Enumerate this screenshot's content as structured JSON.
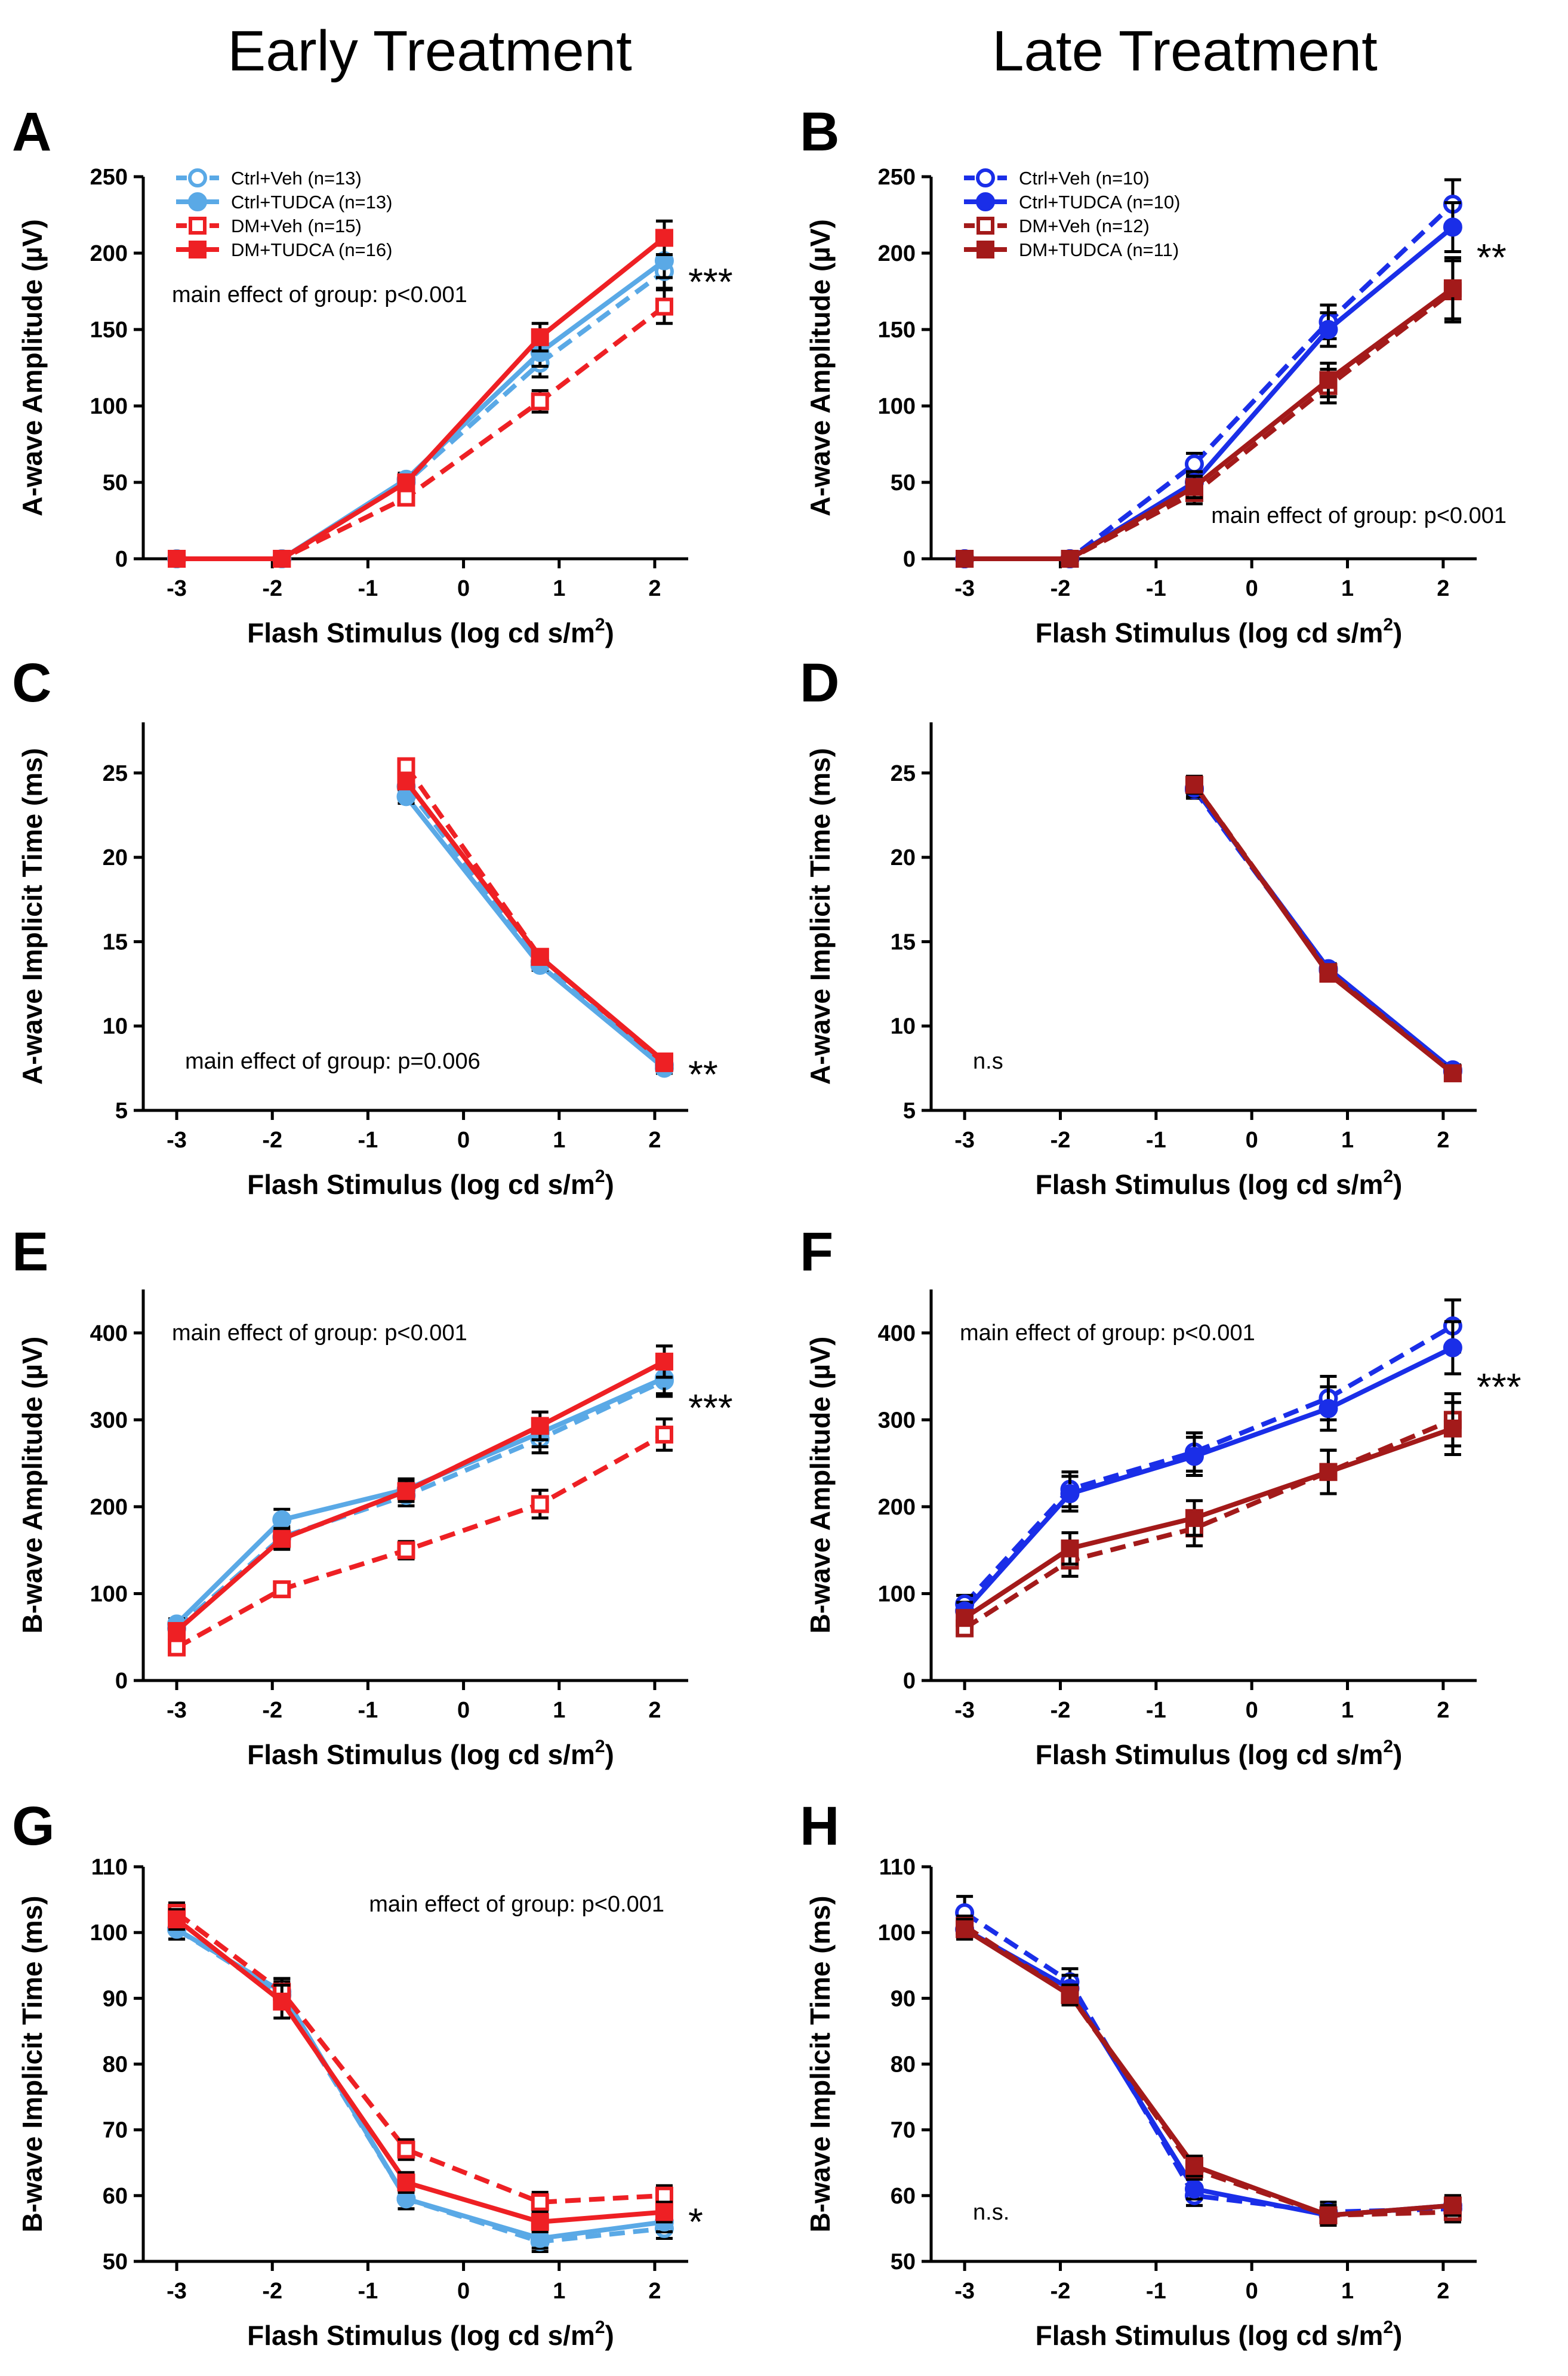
{
  "column_titles": [
    "Early Treatment",
    "Late Treatment"
  ],
  "colors": {
    "ctrl_early": "#5aa9e6",
    "dm_early": "#ee2024",
    "ctrl_late": "#1a2ee8",
    "dm_late": "#a31a1a"
  },
  "chart_data": [
    {
      "panel": "A",
      "type": "line",
      "column": "Early Treatment",
      "xlabel": "Flash Stimulus (log cd s/m2)",
      "ylabel": "A-wave Amplitude (µV)",
      "xlim": [
        -3.35,
        2.35
      ],
      "ylim": [
        0,
        250
      ],
      "xticks": [
        -3,
        -2,
        -1,
        0,
        1,
        2
      ],
      "yticks": [
        0,
        50,
        100,
        150,
        200,
        250
      ],
      "annotation": "main effect of group: p<0.001",
      "annotation_pos": "upper-left",
      "significance": "***",
      "legend_position": "top-left",
      "x": [
        -3,
        -1.9,
        -0.6,
        0.8,
        2.1
      ],
      "series": [
        {
          "name": "Ctrl+Veh (n=13)",
          "color": "#5aa9e6",
          "marker": "circle-open",
          "dash": true,
          "values": [
            0,
            0,
            50,
            128,
            188
          ],
          "errors": [
            0,
            0,
            4,
            9,
            11
          ]
        },
        {
          "name": "Ctrl+TUDCA (n=13)",
          "color": "#5aa9e6",
          "marker": "circle",
          "dash": false,
          "values": [
            0,
            0,
            52,
            135,
            195
          ],
          "errors": [
            0,
            0,
            4,
            9,
            11
          ]
        },
        {
          "name": "DM+Veh (n=15)",
          "color": "#ee2024",
          "marker": "square-open",
          "dash": true,
          "values": [
            0,
            0,
            40,
            103,
            165
          ],
          "errors": [
            0,
            0,
            4,
            7,
            11
          ]
        },
        {
          "name": "DM+TUDCA (n=16)",
          "color": "#ee2024",
          "marker": "square",
          "dash": false,
          "values": [
            0,
            0,
            50,
            145,
            210
          ],
          "errors": [
            0,
            0,
            4,
            9,
            11
          ]
        }
      ]
    },
    {
      "panel": "B",
      "type": "line",
      "column": "Late Treatment",
      "xlabel": "Flash Stimulus (log cd s/m2)",
      "ylabel": "A-wave Amplitude (µV)",
      "xlim": [
        -3.35,
        2.35
      ],
      "ylim": [
        0,
        250
      ],
      "xticks": [
        -3,
        -2,
        -1,
        0,
        1,
        2
      ],
      "yticks": [
        0,
        50,
        100,
        150,
        200,
        250
      ],
      "annotation": "main effect of group: p<0.001",
      "annotation_pos": "lower-right",
      "significance": "**",
      "legend_position": "top-left",
      "x": [
        -3,
        -1.9,
        -0.6,
        0.8,
        2.1
      ],
      "series": [
        {
          "name": "Ctrl+Veh (n=10)",
          "color": "#1a2ee8",
          "marker": "circle-open",
          "dash": true,
          "values": [
            0,
            0,
            62,
            155,
            232
          ],
          "errors": [
            0,
            0,
            7,
            11,
            16
          ]
        },
        {
          "name": "Ctrl+TUDCA (n=10)",
          "color": "#1a2ee8",
          "marker": "circle",
          "dash": false,
          "values": [
            0,
            0,
            50,
            150,
            217
          ],
          "errors": [
            0,
            0,
            7,
            11,
            16
          ]
        },
        {
          "name": "DM+Veh (n=12)",
          "color": "#a31a1a",
          "marker": "square-open",
          "dash": true,
          "values": [
            0,
            0,
            43,
            113,
            175
          ],
          "errors": [
            0,
            0,
            7,
            11,
            20
          ]
        },
        {
          "name": "DM+TUDCA (n=11)",
          "color": "#a31a1a",
          "marker": "square",
          "dash": false,
          "values": [
            0,
            0,
            47,
            117,
            177
          ],
          "errors": [
            0,
            0,
            7,
            11,
            20
          ]
        }
      ]
    },
    {
      "panel": "C",
      "type": "line",
      "column": "Early Treatment",
      "xlabel": "Flash Stimulus (log cd s/m2)",
      "ylabel": "A-wave Implicit Time (ms)",
      "xlim": [
        -3.35,
        2.35
      ],
      "ylim": [
        5,
        28
      ],
      "xticks": [
        -3,
        -2,
        -1,
        0,
        1,
        2
      ],
      "yticks": [
        5,
        10,
        15,
        20,
        25
      ],
      "annotation": "main effect of group: p=0.006",
      "annotation_pos": "lower-left",
      "significance": "**",
      "x": [
        -0.6,
        0.8,
        2.1
      ],
      "series": [
        {
          "name": "Ctrl+Veh",
          "color": "#5aa9e6",
          "marker": "circle-open",
          "dash": true,
          "values": [
            24.2,
            13.8,
            7.7
          ],
          "errors": [
            0.4,
            0.3,
            0.3
          ]
        },
        {
          "name": "Ctrl+TUDCA",
          "color": "#5aa9e6",
          "marker": "circle",
          "dash": false,
          "values": [
            23.6,
            13.6,
            7.5
          ],
          "errors": [
            0.4,
            0.3,
            0.3
          ]
        },
        {
          "name": "DM+Veh",
          "color": "#ee2024",
          "marker": "square-open",
          "dash": true,
          "values": [
            25.4,
            14.1,
            7.8
          ],
          "errors": [
            0.4,
            0.3,
            0.3
          ]
        },
        {
          "name": "DM+TUDCA",
          "color": "#ee2024",
          "marker": "square",
          "dash": false,
          "values": [
            24.5,
            14.1,
            7.9
          ],
          "errors": [
            0.4,
            0.3,
            0.3
          ]
        }
      ]
    },
    {
      "panel": "D",
      "type": "line",
      "column": "Late Treatment",
      "xlabel": "Flash Stimulus (log cd s/m2)",
      "ylabel": "A-wave Implicit Time (ms)",
      "xlim": [
        -3.35,
        2.35
      ],
      "ylim": [
        5,
        28
      ],
      "xticks": [
        -3,
        -2,
        -1,
        0,
        1,
        2
      ],
      "yticks": [
        5,
        10,
        15,
        20,
        25
      ],
      "annotation": "n.s",
      "annotation_pos": "lower-left",
      "significance": "",
      "x": [
        -0.6,
        0.8,
        2.1
      ],
      "series": [
        {
          "name": "Ctrl+Veh",
          "color": "#1a2ee8",
          "marker": "circle-open",
          "dash": true,
          "values": [
            24.0,
            13.3,
            7.3
          ],
          "errors": [
            0.5,
            0.3,
            0.3
          ]
        },
        {
          "name": "Ctrl+TUDCA",
          "color": "#1a2ee8",
          "marker": "circle",
          "dash": false,
          "values": [
            24.1,
            13.4,
            7.4
          ],
          "errors": [
            0.5,
            0.3,
            0.3
          ]
        },
        {
          "name": "DM+Veh",
          "color": "#a31a1a",
          "marker": "square-open",
          "dash": true,
          "values": [
            24.3,
            13.2,
            7.2
          ],
          "errors": [
            0.5,
            0.3,
            0.3
          ]
        },
        {
          "name": "DM+TUDCA",
          "color": "#a31a1a",
          "marker": "square",
          "dash": false,
          "values": [
            24.3,
            13.1,
            7.2
          ],
          "errors": [
            0.5,
            0.3,
            0.3
          ]
        }
      ]
    },
    {
      "panel": "E",
      "type": "line",
      "column": "Early Treatment",
      "xlabel": "Flash Stimulus (log cd s/m2)",
      "ylabel": "B-wave Amplitude (µV)",
      "xlim": [
        -3.35,
        2.35
      ],
      "ylim": [
        0,
        450
      ],
      "xticks": [
        -3,
        -2,
        -1,
        0,
        1,
        2
      ],
      "yticks": [
        0,
        100,
        200,
        300,
        400
      ],
      "annotation": "main effect of group: p<0.001",
      "annotation_pos": "upper-left",
      "significance": "***",
      "x": [
        -3,
        -1.9,
        -0.6,
        0.8,
        2.1
      ],
      "series": [
        {
          "name": "Ctrl+Veh",
          "color": "#5aa9e6",
          "marker": "circle-open",
          "dash": true,
          "values": [
            60,
            165,
            213,
            278,
            345
          ],
          "errors": [
            6,
            12,
            12,
            16,
            18
          ]
        },
        {
          "name": "Ctrl+TUDCA",
          "color": "#5aa9e6",
          "marker": "circle",
          "dash": false,
          "values": [
            65,
            185,
            220,
            285,
            348
          ],
          "errors": [
            6,
            12,
            12,
            16,
            18
          ]
        },
        {
          "name": "DM+Veh",
          "color": "#ee2024",
          "marker": "square-open",
          "dash": true,
          "values": [
            38,
            105,
            150,
            203,
            283
          ],
          "errors": [
            5,
            8,
            10,
            16,
            18
          ]
        },
        {
          "name": "DM+TUDCA",
          "color": "#ee2024",
          "marker": "square",
          "dash": false,
          "values": [
            57,
            163,
            218,
            293,
            367
          ],
          "errors": [
            6,
            12,
            12,
            16,
            18
          ]
        }
      ]
    },
    {
      "panel": "F",
      "type": "line",
      "column": "Late Treatment",
      "xlabel": "Flash Stimulus (log cd s/m2)",
      "ylabel": "B-wave Amplitude (µV)",
      "xlim": [
        -3.35,
        2.35
      ],
      "ylim": [
        0,
        450
      ],
      "xticks": [
        -3,
        -2,
        -1,
        0,
        1,
        2
      ],
      "yticks": [
        0,
        100,
        200,
        300,
        400
      ],
      "annotation": "main effect of group: p<0.001",
      "annotation_pos": "upper-left",
      "significance": "***",
      "x": [
        -3,
        -1.9,
        -0.6,
        0.8,
        2.1
      ],
      "series": [
        {
          "name": "Ctrl+Veh",
          "color": "#1a2ee8",
          "marker": "circle-open",
          "dash": true,
          "values": [
            88,
            220,
            263,
            325,
            408
          ],
          "errors": [
            10,
            20,
            22,
            25,
            30
          ]
        },
        {
          "name": "Ctrl+TUDCA",
          "color": "#1a2ee8",
          "marker": "circle",
          "dash": false,
          "values": [
            80,
            215,
            258,
            313,
            383
          ],
          "errors": [
            10,
            20,
            22,
            25,
            30
          ]
        },
        {
          "name": "DM+Veh",
          "color": "#a31a1a",
          "marker": "square-open",
          "dash": true,
          "values": [
            60,
            138,
            175,
            240,
            300
          ],
          "errors": [
            8,
            18,
            20,
            25,
            30
          ]
        },
        {
          "name": "DM+TUDCA",
          "color": "#a31a1a",
          "marker": "square",
          "dash": false,
          "values": [
            72,
            152,
            187,
            240,
            290
          ],
          "errors": [
            8,
            18,
            20,
            25,
            30
          ]
        }
      ]
    },
    {
      "panel": "G",
      "type": "line",
      "column": "Early Treatment",
      "xlabel": "Flash Stimulus (log cd s/m2)",
      "ylabel": "B-wave Implicit Time (ms)",
      "xlim": [
        -3.35,
        2.35
      ],
      "ylim": [
        50,
        110
      ],
      "xticks": [
        -3,
        -2,
        -1,
        0,
        1,
        2
      ],
      "yticks": [
        50,
        60,
        70,
        80,
        90,
        100,
        110
      ],
      "annotation": "main effect of group: p<0.001",
      "annotation_pos": "upper-right",
      "significance": "*",
      "x": [
        -3,
        -1.9,
        -0.6,
        0.8,
        2.1
      ],
      "series": [
        {
          "name": "Ctrl+Veh",
          "color": "#5aa9e6",
          "marker": "circle-open",
          "dash": true,
          "values": [
            100.5,
            90.5,
            59.5,
            53.0,
            55.0
          ],
          "errors": [
            1.5,
            2.0,
            1.5,
            1.5,
            1.5
          ]
        },
        {
          "name": "Ctrl+TUDCA",
          "color": "#5aa9e6",
          "marker": "circle",
          "dash": false,
          "values": [
            100.5,
            91.0,
            59.5,
            53.5,
            56.0
          ],
          "errors": [
            1.5,
            2.0,
            1.5,
            1.5,
            1.5
          ]
        },
        {
          "name": "DM+Veh",
          "color": "#ee2024",
          "marker": "square-open",
          "dash": true,
          "values": [
            103.0,
            91.0,
            67.0,
            59.0,
            60.0
          ],
          "errors": [
            1.5,
            2.0,
            1.5,
            1.5,
            1.5
          ]
        },
        {
          "name": "DM+TUDCA",
          "color": "#ee2024",
          "marker": "square",
          "dash": false,
          "values": [
            102.0,
            89.5,
            62.0,
            56.0,
            57.5
          ],
          "errors": [
            1.5,
            2.5,
            1.5,
            1.5,
            1.5
          ]
        }
      ]
    },
    {
      "panel": "H",
      "type": "line",
      "column": "Late Treatment",
      "xlabel": "Flash Stimulus (log cd s/m2)",
      "ylabel": "B-wave Implicit Time (ms)",
      "xlim": [
        -3.35,
        2.35
      ],
      "ylim": [
        50,
        110
      ],
      "xticks": [
        -3,
        -2,
        -1,
        0,
        1,
        2
      ],
      "yticks": [
        50,
        60,
        70,
        80,
        90,
        100,
        110
      ],
      "annotation": "n.s.",
      "annotation_pos": "lower-left",
      "significance": "",
      "x": [
        -3,
        -1.9,
        -0.6,
        0.8,
        2.1
      ],
      "series": [
        {
          "name": "Ctrl+Veh",
          "color": "#1a2ee8",
          "marker": "circle-open",
          "dash": true,
          "values": [
            103.0,
            92.5,
            60.0,
            57.5,
            58.0
          ],
          "errors": [
            2.5,
            2.0,
            1.5,
            1.5,
            1.5
          ]
        },
        {
          "name": "Ctrl+TUDCA",
          "color": "#1a2ee8",
          "marker": "circle",
          "dash": false,
          "values": [
            100.5,
            91.5,
            61.0,
            57.0,
            58.5
          ],
          "errors": [
            1.5,
            2.0,
            1.5,
            1.5,
            1.5
          ]
        },
        {
          "name": "DM+Veh",
          "color": "#a31a1a",
          "marker": "square-open",
          "dash": true,
          "values": [
            101.0,
            90.5,
            64.0,
            57.0,
            57.5
          ],
          "errors": [
            1.5,
            1.5,
            1.5,
            1.5,
            1.5
          ]
        },
        {
          "name": "DM+TUDCA",
          "color": "#a31a1a",
          "marker": "square",
          "dash": false,
          "values": [
            100.5,
            90.5,
            64.5,
            57.0,
            58.5
          ],
          "errors": [
            1.5,
            1.5,
            1.5,
            1.5,
            1.5
          ]
        }
      ]
    }
  ]
}
